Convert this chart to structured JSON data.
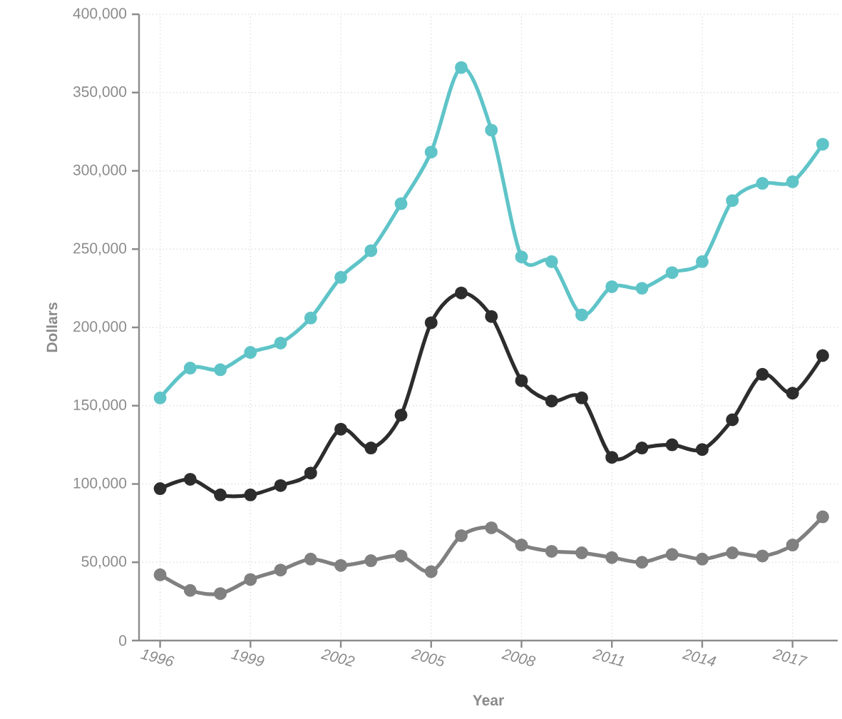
{
  "chart_data": {
    "type": "line",
    "xlabel": "Year",
    "ylabel": "Dollars",
    "x": [
      1996,
      1997,
      1998,
      1999,
      2000,
      2001,
      2002,
      2003,
      2004,
      2005,
      2006,
      2007,
      2008,
      2009,
      2010,
      2011,
      2012,
      2013,
      2014,
      2015,
      2016,
      2017,
      2018
    ],
    "series": [
      {
        "color": "#5fc4c8",
        "values": [
          155000,
          174000,
          173000,
          184000,
          190000,
          206000,
          232000,
          249000,
          279000,
          312000,
          366000,
          326000,
          245000,
          242000,
          208000,
          226000,
          225000,
          235000,
          242000,
          281000,
          292000,
          293000,
          317000
        ]
      },
      {
        "color": "#2d2d2d",
        "values": [
          97000,
          103000,
          93000,
          93000,
          99000,
          107000,
          135000,
          123000,
          144000,
          203000,
          222000,
          207000,
          166000,
          153000,
          155000,
          117000,
          123000,
          125000,
          122000,
          141000,
          170000,
          158000,
          182000
        ]
      },
      {
        "color": "#808080",
        "values": [
          42000,
          32000,
          30000,
          39000,
          45000,
          52000,
          48000,
          51000,
          54000,
          44000,
          67000,
          72000,
          61000,
          57000,
          56000,
          53000,
          50000,
          55000,
          52000,
          56000,
          54000,
          61000,
          79000
        ]
      }
    ],
    "xlim": [
      1995.3,
      2018.5
    ],
    "ylim": [
      0,
      400000
    ],
    "xticks": [
      1996,
      1999,
      2002,
      2005,
      2008,
      2011,
      2014,
      2017
    ],
    "yticks": [
      0,
      {
        "value": 50000,
        "label": "50,000"
      },
      {
        "value": 100000,
        "label": "100,000"
      },
      {
        "value": 150000,
        "label": "150,000"
      },
      {
        "value": 200000,
        "label": "200,000"
      },
      {
        "value": 250000,
        "label": "250,000"
      },
      {
        "value": 300000,
        "label": "300,000"
      },
      {
        "value": 350000,
        "label": "350,000"
      },
      {
        "value": 400000,
        "label": "400,000"
      }
    ],
    "grid": true,
    "marker": "circle",
    "line_style": "solid"
  }
}
